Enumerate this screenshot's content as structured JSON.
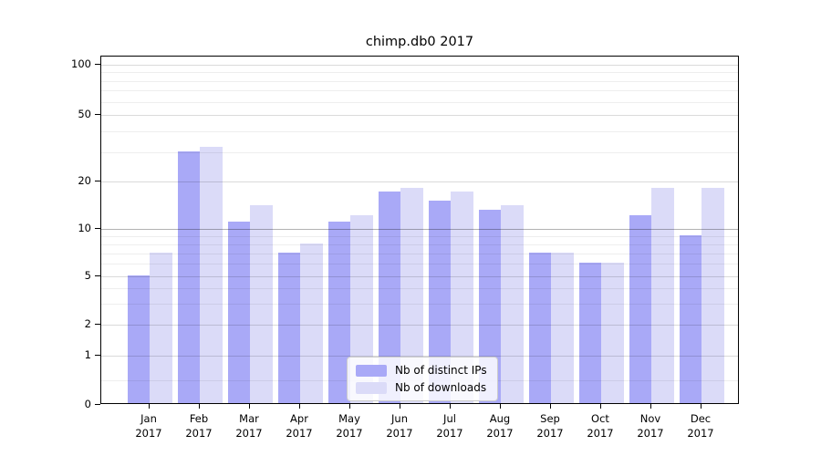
{
  "title": "chimp.db0 2017",
  "chart_data": {
    "type": "bar",
    "title": "chimp.db0 2017",
    "categories": [
      "Jan",
      "Feb",
      "Mar",
      "Apr",
      "May",
      "Jun",
      "Jul",
      "Aug",
      "Sep",
      "Oct",
      "Nov",
      "Dec"
    ],
    "year": "2017",
    "series": [
      {
        "name": "Nb of distinct IPs",
        "color": "#a9a9f7",
        "values": [
          5,
          30,
          11,
          7,
          11,
          17,
          15,
          13,
          7,
          6,
          12,
          9
        ]
      },
      {
        "name": "Nb of downloads",
        "color": "#dbdbf8",
        "values": [
          7,
          32,
          14,
          8,
          12,
          18,
          17,
          14,
          7,
          6,
          18,
          18
        ]
      }
    ],
    "xlabel": "",
    "ylabel": "",
    "yscale": "symlog",
    "ylim": [
      0,
      112
    ],
    "yticks": [
      0,
      1,
      2,
      5,
      10,
      20,
      50,
      100
    ],
    "minor_yticks": [
      0.5,
      3,
      4,
      6,
      7,
      8,
      9,
      30,
      40,
      60,
      70,
      80,
      90
    ],
    "emphasized_gridline": 10,
    "grid": "on",
    "legend_position": "lower center"
  },
  "colors": {
    "series_ips": "#a9a9f7",
    "series_downloads": "#dbdbf8",
    "axis": "#000000",
    "background": "#ffffff"
  }
}
